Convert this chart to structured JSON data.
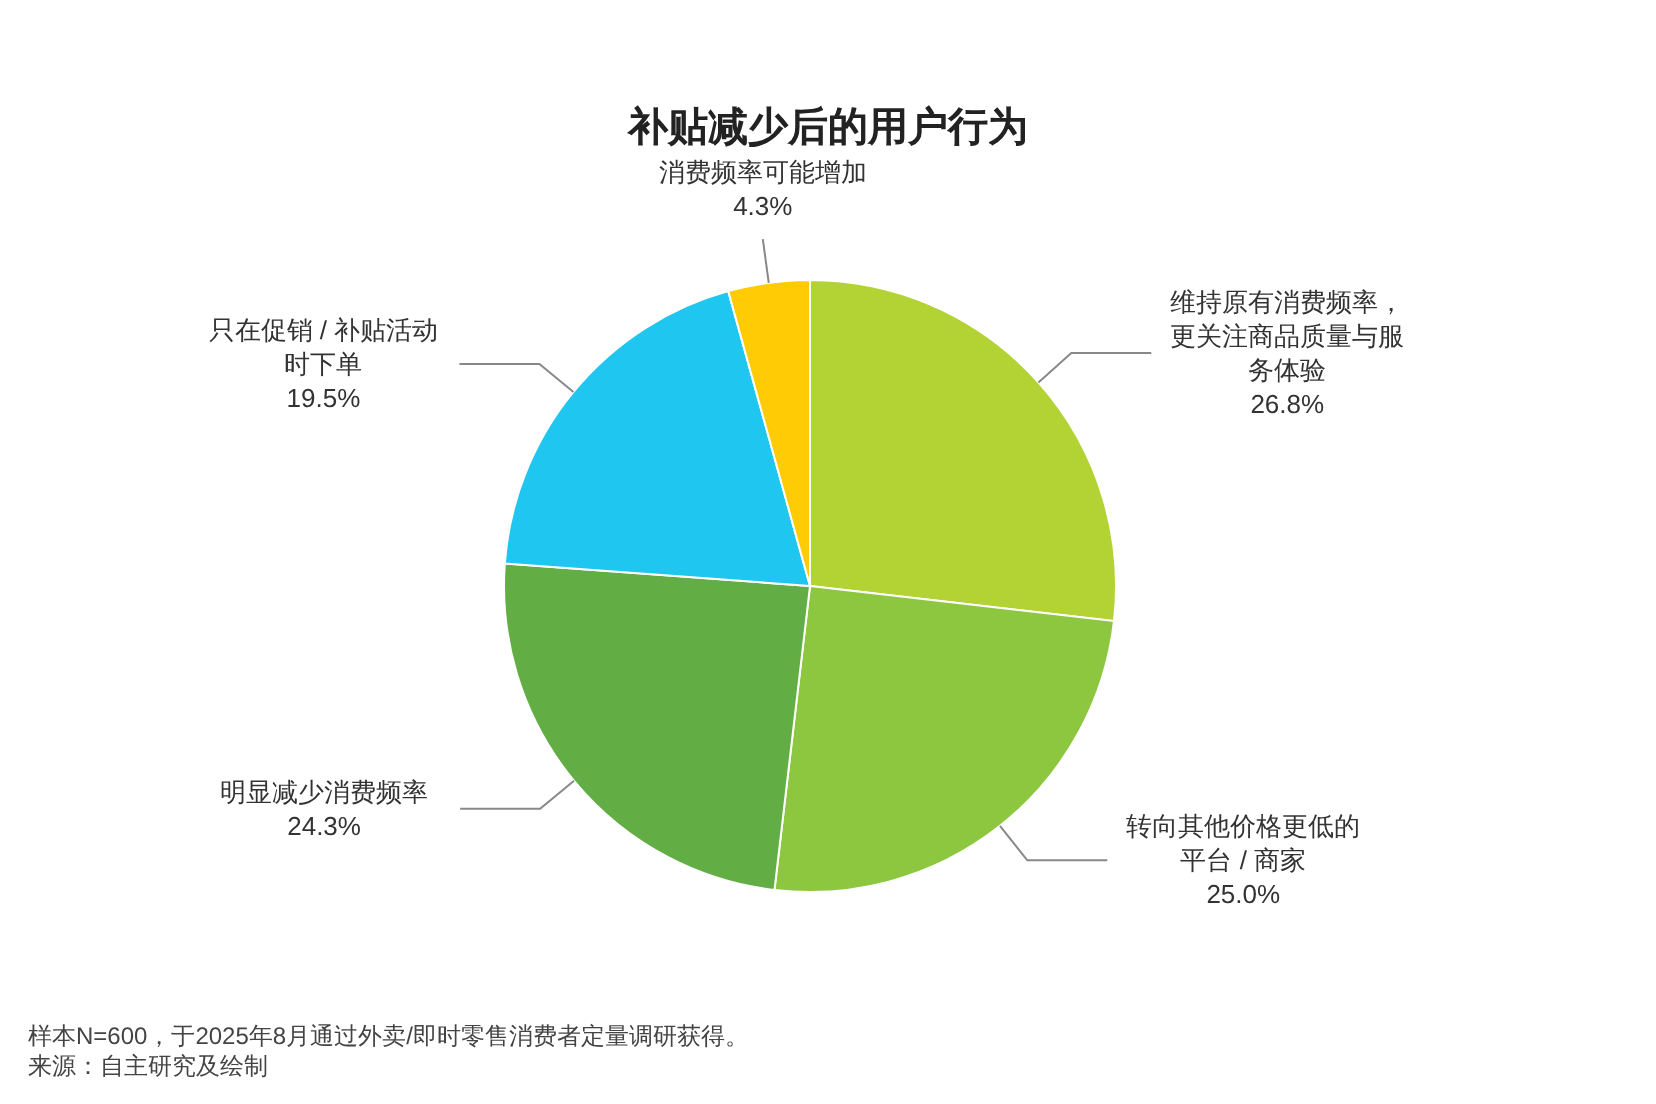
{
  "chart_data": {
    "type": "pie",
    "title": "补贴减少后的用户行为",
    "categories": [
      "维持原有消费频率，更关注商品质量与服务体验",
      "转向其他价格更低的平台 / 商家",
      "明显减少消费频率",
      "只在促销 / 补贴活动时下单",
      "消费频率可能增加"
    ],
    "values": [
      26.8,
      25.0,
      24.3,
      19.5,
      4.3
    ],
    "value_labels": [
      "26.8%",
      "25.0%",
      "24.3%",
      "19.5%",
      "4.3%"
    ],
    "colors": [
      "#b3d335",
      "#8dc63f",
      "#62ae45",
      "#1fc6ef",
      "#ffcb05"
    ],
    "annotations": [
      "样本N=600，于2025年8月通过外卖/即时零售消费者定量调研获得。",
      "来源：自主研究及绘制"
    ]
  }
}
